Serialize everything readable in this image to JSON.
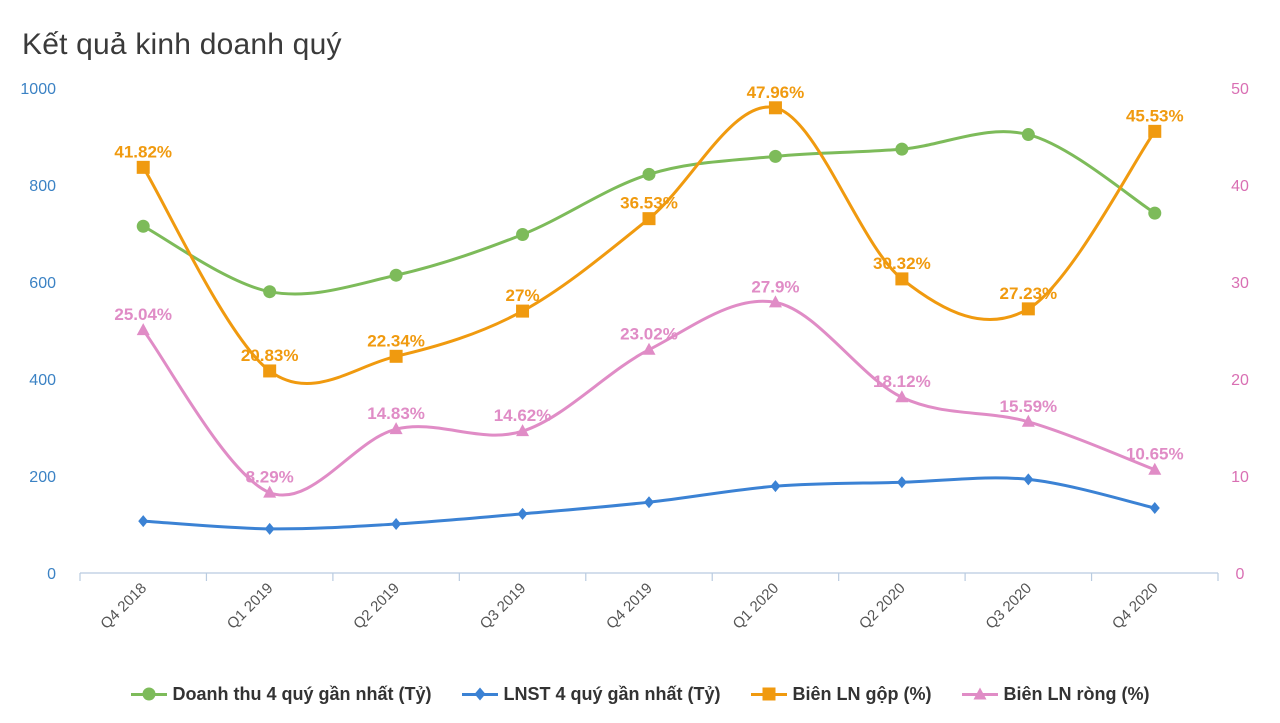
{
  "chart_data": {
    "type": "line",
    "title": "Kết quả kinh doanh quý",
    "categories": [
      "Q4 2018",
      "Q1 2019",
      "Q2 2019",
      "Q3 2019",
      "Q4 2019",
      "Q1 2020",
      "Q2 2020",
      "Q3 2020",
      "Q4 2020"
    ],
    "y_left": {
      "min": 0,
      "max": 1000,
      "ticks": [
        "0",
        "200",
        "400",
        "600",
        "800",
        "1000"
      ],
      "color": "#3b82c4"
    },
    "y_right": {
      "min": 0,
      "max": 50,
      "ticks": [
        "0",
        "10",
        "20",
        "30",
        "40",
        "50"
      ],
      "color": "#d96fb3"
    },
    "series": [
      {
        "name": "Doanh thu 4 quý gần nhất (Tỷ)",
        "axis": "left",
        "marker": "circle",
        "color": "#7dbb5a",
        "values": [
          715,
          580,
          614,
          698,
          822,
          859,
          874,
          904,
          742
        ],
        "labels": null
      },
      {
        "name": "LNST 4 quý gần nhất (Tỷ)",
        "axis": "left",
        "marker": "diamond",
        "color": "#3b82d4",
        "values": [
          107,
          91,
          101,
          122,
          146,
          179,
          187,
          193,
          134
        ],
        "labels": null
      },
      {
        "name": "Biên LN gộp (%)",
        "axis": "right",
        "marker": "square",
        "color": "#f09a0f",
        "values": [
          41.82,
          20.83,
          22.34,
          27,
          36.53,
          47.96,
          30.32,
          27.23,
          45.53
        ],
        "labels": [
          "41.82%",
          "20.83%",
          "22.34%",
          "27%",
          "36.53%",
          "47.96%",
          "30.32%",
          "27.23%",
          "45.53%"
        ]
      },
      {
        "name": "Biên LN ròng (%)",
        "axis": "right",
        "marker": "triangle",
        "color": "#e08cc6",
        "values": [
          25.04,
          8.29,
          14.83,
          14.62,
          23.02,
          27.9,
          18.12,
          15.59,
          10.65
        ],
        "labels": [
          "25.04%",
          "8.29%",
          "14.83%",
          "14.62%",
          "23.02%",
          "27.9%",
          "18.12%",
          "15.59%",
          "10.65%"
        ]
      }
    ],
    "legend": "bottom",
    "grid": false
  }
}
